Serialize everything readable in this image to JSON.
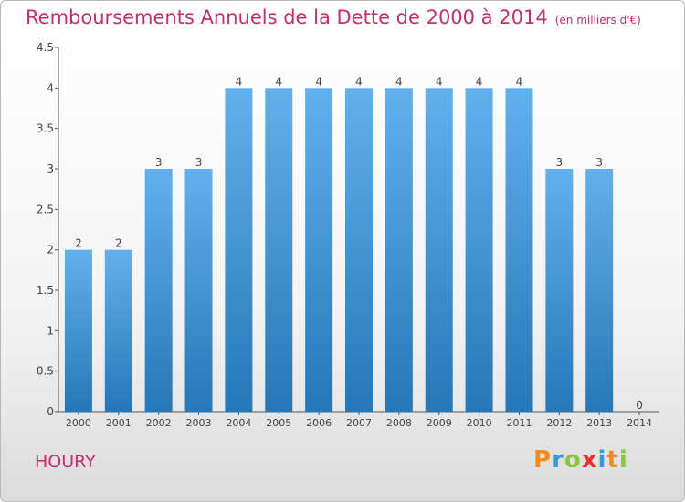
{
  "header": {
    "title": "Remboursements Annuels de la Dette de 2000 à 2014",
    "unit": "(en milliers d'€)"
  },
  "footer": {
    "commune": "HOURY",
    "logo_letters": [
      "P",
      "r",
      "o",
      "x",
      "i",
      "t",
      "i"
    ],
    "logo_colors": [
      "#f28c1e",
      "#3a9ad9",
      "#8bc53f",
      "#e8312f",
      "#3a9ad9",
      "#f28c1e",
      "#8bc53f"
    ]
  },
  "chart_data": {
    "type": "bar",
    "categories": [
      "2000",
      "2001",
      "2002",
      "2003",
      "2004",
      "2005",
      "2006",
      "2007",
      "2008",
      "2009",
      "2010",
      "2011",
      "2012",
      "2013",
      "2014"
    ],
    "values": [
      2,
      2,
      3,
      3,
      4,
      4,
      4,
      4,
      4,
      4,
      4,
      4,
      3,
      3,
      0
    ],
    "data_labels": [
      "2",
      "2",
      "3",
      "3",
      "4",
      "4",
      "4",
      "4",
      "4",
      "4",
      "4",
      "4",
      "3",
      "3",
      "0"
    ],
    "ylim": [
      0,
      4.5
    ],
    "yticks": [
      0,
      0.5,
      1,
      1.5,
      2,
      2.5,
      3,
      3.5,
      4,
      4.5
    ],
    "ytick_labels": [
      "0",
      "0.5",
      "1",
      "1.5",
      "2",
      "2.5",
      "3",
      "3.5",
      "4",
      "4.5"
    ],
    "bar_color_top": "#62b1ec",
    "bar_color_bottom": "#2677b7",
    "grid": false
  }
}
